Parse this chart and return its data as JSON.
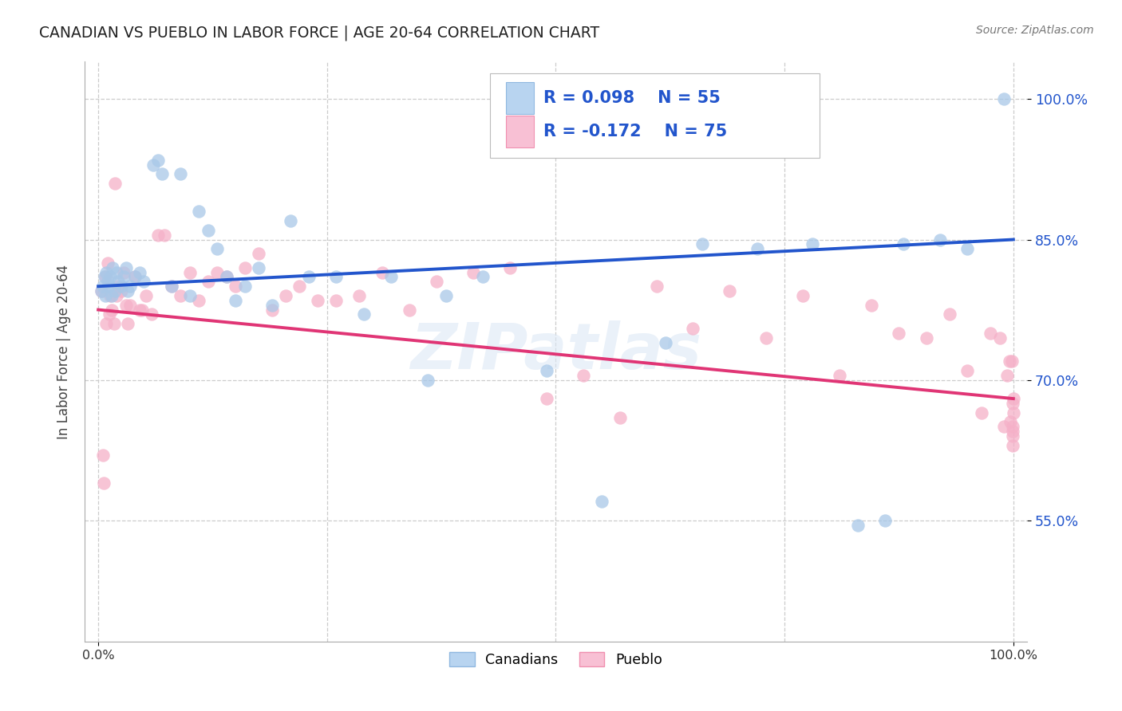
{
  "title": "CANADIAN VS PUEBLO IN LABOR FORCE | AGE 20-64 CORRELATION CHART",
  "source": "Source: ZipAtlas.com",
  "ylabel": "In Labor Force | Age 20-64",
  "xlim": [
    -0.015,
    1.015
  ],
  "ylim": [
    0.42,
    1.04
  ],
  "ytick_positions": [
    0.55,
    0.7,
    0.85,
    1.0
  ],
  "ytick_labels": [
    "55.0%",
    "70.0%",
    "85.0%",
    "100.0%"
  ],
  "canadians_color": "#a8c8e8",
  "pueblo_color": "#f5b0c8",
  "trend_canadian_color": "#2255cc",
  "trend_pueblo_color": "#e03575",
  "R_canadian": 0.098,
  "N_canadian": 55,
  "R_pueblo": -0.172,
  "N_pueblo": 75,
  "legend_label_canadian": "Canadians",
  "legend_label_pueblo": "Pueblo",
  "watermark": "ZIPatlas",
  "canadians_x": [
    0.003,
    0.005,
    0.007,
    0.008,
    0.009,
    0.01,
    0.012,
    0.013,
    0.015,
    0.016,
    0.018,
    0.02,
    0.022,
    0.025,
    0.028,
    0.03,
    0.032,
    0.035,
    0.04,
    0.045,
    0.05,
    0.06,
    0.065,
    0.07,
    0.08,
    0.09,
    0.1,
    0.11,
    0.12,
    0.13,
    0.14,
    0.15,
    0.16,
    0.175,
    0.19,
    0.21,
    0.23,
    0.26,
    0.29,
    0.32,
    0.36,
    0.38,
    0.42,
    0.49,
    0.55,
    0.62,
    0.66,
    0.72,
    0.78,
    0.83,
    0.86,
    0.88,
    0.92,
    0.95,
    0.99
  ],
  "canadians_y": [
    0.795,
    0.8,
    0.81,
    0.79,
    0.815,
    0.805,
    0.8,
    0.81,
    0.79,
    0.82,
    0.795,
    0.815,
    0.805,
    0.8,
    0.81,
    0.82,
    0.795,
    0.8,
    0.81,
    0.815,
    0.805,
    0.93,
    0.935,
    0.92,
    0.8,
    0.92,
    0.79,
    0.88,
    0.86,
    0.84,
    0.81,
    0.785,
    0.8,
    0.82,
    0.78,
    0.87,
    0.81,
    0.81,
    0.77,
    0.81,
    0.7,
    0.79,
    0.81,
    0.71,
    0.57,
    0.74,
    0.845,
    0.84,
    0.845,
    0.545,
    0.55,
    0.845,
    0.85,
    0.84,
    1.0
  ],
  "pueblo_x": [
    0.003,
    0.005,
    0.006,
    0.008,
    0.009,
    0.01,
    0.012,
    0.013,
    0.015,
    0.017,
    0.018,
    0.02,
    0.022,
    0.025,
    0.028,
    0.03,
    0.032,
    0.035,
    0.04,
    0.045,
    0.048,
    0.052,
    0.058,
    0.065,
    0.072,
    0.08,
    0.09,
    0.1,
    0.11,
    0.12,
    0.13,
    0.14,
    0.15,
    0.16,
    0.175,
    0.19,
    0.205,
    0.22,
    0.24,
    0.26,
    0.285,
    0.31,
    0.34,
    0.37,
    0.41,
    0.45,
    0.49,
    0.53,
    0.57,
    0.61,
    0.65,
    0.69,
    0.73,
    0.77,
    0.81,
    0.845,
    0.875,
    0.905,
    0.93,
    0.95,
    0.965,
    0.975,
    0.985,
    0.99,
    0.993,
    0.996,
    0.997,
    0.998,
    0.999,
    0.999,
    0.9992,
    0.9994,
    0.9996,
    0.9998,
    1.0
  ],
  "pueblo_y": [
    0.795,
    0.62,
    0.59,
    0.81,
    0.76,
    0.825,
    0.77,
    0.79,
    0.775,
    0.76,
    0.91,
    0.79,
    0.8,
    0.795,
    0.815,
    0.78,
    0.76,
    0.78,
    0.81,
    0.775,
    0.775,
    0.79,
    0.77,
    0.855,
    0.855,
    0.8,
    0.79,
    0.815,
    0.785,
    0.805,
    0.815,
    0.81,
    0.8,
    0.82,
    0.835,
    0.775,
    0.79,
    0.8,
    0.785,
    0.785,
    0.79,
    0.815,
    0.775,
    0.805,
    0.815,
    0.82,
    0.68,
    0.705,
    0.66,
    0.8,
    0.755,
    0.795,
    0.745,
    0.79,
    0.705,
    0.78,
    0.75,
    0.745,
    0.77,
    0.71,
    0.665,
    0.75,
    0.745,
    0.65,
    0.705,
    0.72,
    0.655,
    0.72,
    0.675,
    0.65,
    0.64,
    0.645,
    0.63,
    0.665,
    0.68
  ]
}
